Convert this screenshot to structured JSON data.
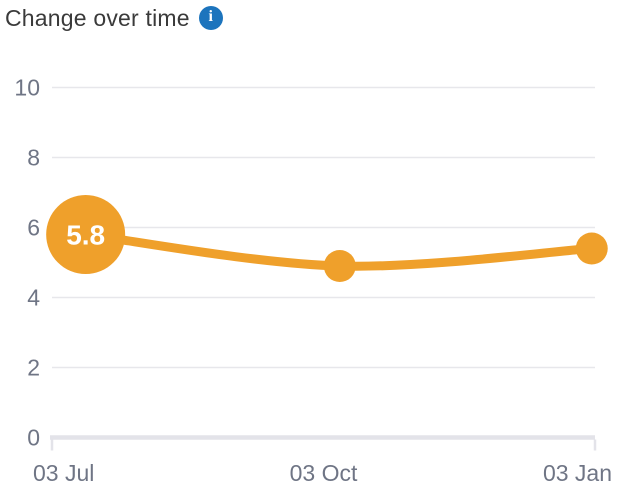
{
  "header": {
    "title": "Change over time",
    "info_icon_glyph": "i"
  },
  "colors": {
    "accent_orange": "#EFA02B",
    "grid_line": "#E7E7EB",
    "axis_line": "#E3E3E9",
    "tick_label": "#6F7585",
    "title_text": "#3A3A3A",
    "info_icon_bg": "#1C74BD",
    "point_label_text": "#FFFFFF",
    "background": "#FFFFFF"
  },
  "chart_data": {
    "type": "line",
    "title": "Change over time",
    "xlabel": "",
    "ylabel": "",
    "ylim": [
      0,
      10
    ],
    "y_ticks": [
      0,
      2,
      4,
      6,
      8,
      10
    ],
    "x_tick_labels": [
      "03 Jul",
      "03 Oct",
      "03 Jan"
    ],
    "grid": "horizontal",
    "legend": false,
    "series": [
      {
        "name": "value",
        "color": "#EFA02B",
        "points": [
          {
            "x_label": "03 Jul",
            "x_frac": 0.062,
            "value": 5.8,
            "label": "5.8",
            "emphasis": true
          },
          {
            "x_label": "03 Oct",
            "x_frac": 0.53,
            "value": 4.9,
            "label": "",
            "emphasis": false
          },
          {
            "x_label": "03 Jan",
            "x_frac": 0.994,
            "value": 5.4,
            "label": "",
            "emphasis": false
          }
        ]
      }
    ]
  }
}
